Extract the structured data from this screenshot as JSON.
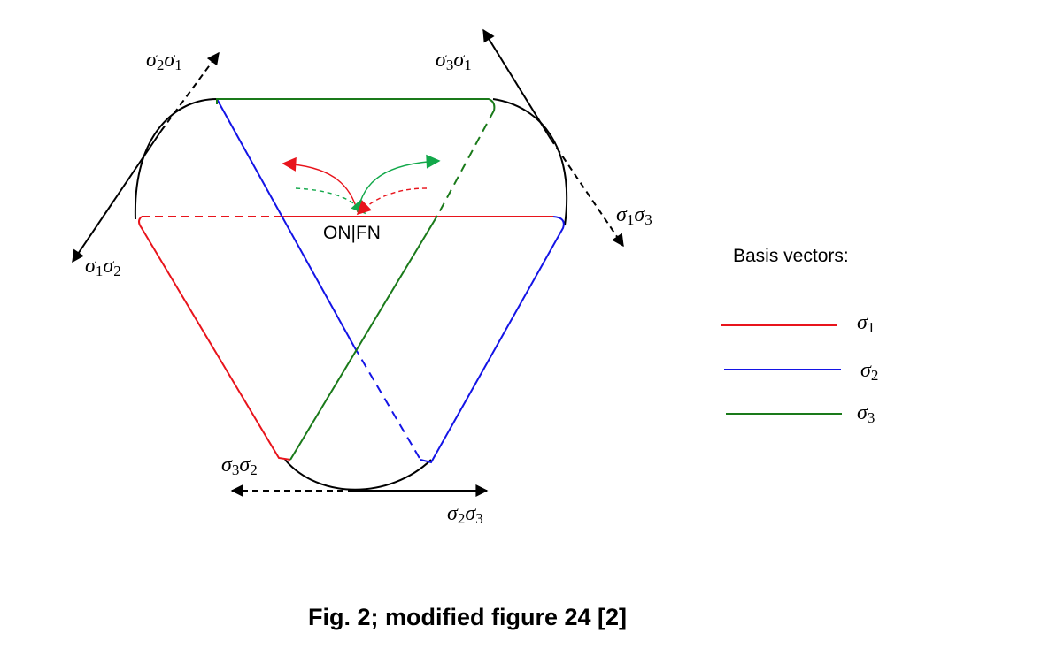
{
  "center_label": "ON|FN",
  "legend": {
    "title": "Basis vectors:",
    "items": [
      {
        "symbol": "σ",
        "subscript": "1",
        "color": "#e8141c"
      },
      {
        "symbol": "σ",
        "subscript": "2",
        "color": "#1414e6"
      },
      {
        "symbol": "σ",
        "subscript": "3",
        "color": "#1a7a1a"
      }
    ]
  },
  "vector_labels": {
    "s2s1": {
      "a": "σ",
      "a_sub": "2",
      "b": "σ",
      "b_sub": "1"
    },
    "s3s1": {
      "a": "σ",
      "a_sub": "3",
      "b": "σ",
      "b_sub": "1"
    },
    "s1s3": {
      "a": "σ",
      "a_sub": "1",
      "b": "σ",
      "b_sub": "3"
    },
    "s1s2": {
      "a": "σ",
      "a_sub": "1",
      "b": "σ",
      "b_sub": "2"
    },
    "s3s2": {
      "a": "σ",
      "a_sub": "3",
      "b": "σ",
      "b_sub": "2"
    },
    "s2s3": {
      "a": "σ",
      "a_sub": "2",
      "b": "σ",
      "b_sub": "3"
    }
  },
  "caption": "Fig. 2; modified figure 24 [2]",
  "colors": {
    "red": "#e8141c",
    "blue": "#1414e6",
    "green": "#1a7a1a",
    "arrow_green": "#12a84a",
    "black": "#000000"
  }
}
